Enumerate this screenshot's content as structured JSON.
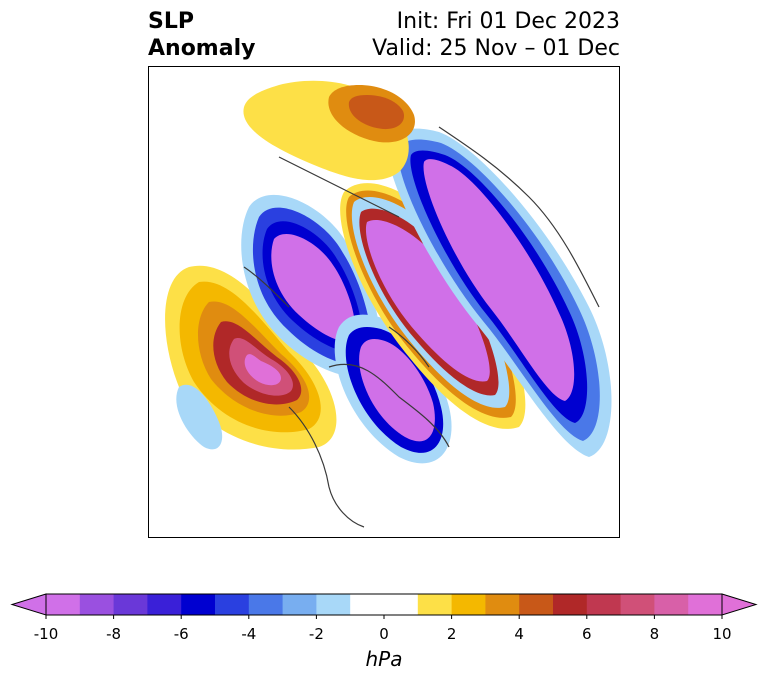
{
  "title": {
    "left_line1": "SLP",
    "left_line2": "Anomaly",
    "right_line1": "Init: Fri 01 Dec 2023",
    "right_line2": "Valid: 25 Nov – 01 Dec"
  },
  "colorbar": {
    "unit": "hPa",
    "ticks": [
      "-10",
      "-8",
      "-6",
      "-4",
      "-2",
      "0",
      "2",
      "4",
      "6",
      "8",
      "10"
    ],
    "tick_values": [
      -10,
      -8,
      -6,
      -4,
      -2,
      0,
      2,
      4,
      6,
      8,
      10
    ],
    "bins": [
      {
        "from": -10,
        "to": -9,
        "color": "#d070e8"
      },
      {
        "from": -9,
        "to": -8,
        "color": "#9a50e0"
      },
      {
        "from": -8,
        "to": -7,
        "color": "#6a38d8"
      },
      {
        "from": -7,
        "to": -6,
        "color": "#3a20d8"
      },
      {
        "from": -6,
        "to": -5,
        "color": "#0000d0"
      },
      {
        "from": -5,
        "to": -4,
        "color": "#2a40e0"
      },
      {
        "from": -4,
        "to": -3,
        "color": "#4a78e8"
      },
      {
        "from": -3,
        "to": -2,
        "color": "#78aef0"
      },
      {
        "from": -2,
        "to": -1,
        "color": "#a8d8f8"
      },
      {
        "from": -1,
        "to": 1,
        "color": "#ffffff"
      },
      {
        "from": 1,
        "to": 2,
        "color": "#fde047"
      },
      {
        "from": 2,
        "to": 3,
        "color": "#f4b800"
      },
      {
        "from": 3,
        "to": 4,
        "color": "#e08c10"
      },
      {
        "from": 4,
        "to": 5,
        "color": "#c85818"
      },
      {
        "from": 5,
        "to": 6,
        "color": "#b02828"
      },
      {
        "from": 6,
        "to": 7,
        "color": "#c03850"
      },
      {
        "from": 7,
        "to": 8,
        "color": "#d05078"
      },
      {
        "from": 8,
        "to": 9,
        "color": "#d860a8"
      },
      {
        "from": 9,
        "to": 10,
        "color": "#e070d8"
      }
    ],
    "under_color": "#d070e8",
    "over_color": "#e070d8"
  }
}
